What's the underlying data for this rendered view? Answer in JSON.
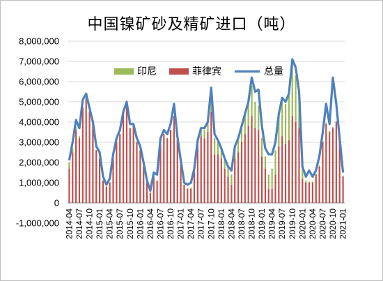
{
  "chart_data": {
    "type": "bar",
    "title": "中国镍矿砂及精矿进口（吨）",
    "stacked": true,
    "y_ticks": [
      "-1,000,000",
      "0",
      "1,000,000",
      "2,000,000",
      "3,000,000",
      "4,000,000",
      "5,000,000",
      "6,000,000",
      "7,000,000",
      "8,000,000"
    ],
    "ylim": [
      -1000000,
      8000000
    ],
    "x_tick_labels": [
      "2014-04",
      "2014-07",
      "2014-10",
      "2015-01",
      "2015-04",
      "2015-07",
      "2015-10",
      "2016-01",
      "2016-04",
      "2016-07",
      "2016-10",
      "2017-01",
      "2017-04",
      "2017-07",
      "2017-10",
      "2018-01",
      "2018-04",
      "2018-07",
      "2018-10",
      "2019-01",
      "2019-04",
      "2019-07",
      "2019-10",
      "2020-01",
      "2020-04",
      "2020-07",
      "2020-10",
      "2021-01"
    ],
    "categories": [
      "2014-04",
      "2014-05",
      "2014-06",
      "2014-07",
      "2014-08",
      "2014-09",
      "2014-10",
      "2014-11",
      "2014-12",
      "2015-01",
      "2015-02",
      "2015-03",
      "2015-04",
      "2015-05",
      "2015-06",
      "2015-07",
      "2015-08",
      "2015-09",
      "2015-10",
      "2015-11",
      "2015-12",
      "2016-01",
      "2016-02",
      "2016-03",
      "2016-04",
      "2016-05",
      "2016-06",
      "2016-07",
      "2016-08",
      "2016-09",
      "2016-10",
      "2016-11",
      "2016-12",
      "2017-01",
      "2017-02",
      "2017-03",
      "2017-04",
      "2017-05",
      "2017-06",
      "2017-07",
      "2017-08",
      "2017-09",
      "2017-10",
      "2017-11",
      "2017-12",
      "2018-01",
      "2018-02",
      "2018-03",
      "2018-04",
      "2018-05",
      "2018-06",
      "2018-07",
      "2018-08",
      "2018-09",
      "2018-10",
      "2018-11",
      "2018-12",
      "2019-01",
      "2019-02",
      "2019-03",
      "2019-04",
      "2019-05",
      "2019-06",
      "2019-07",
      "2019-08",
      "2019-09",
      "2019-10",
      "2019-11",
      "2019-12",
      "2020-01",
      "2020-02",
      "2020-03",
      "2020-04",
      "2020-05",
      "2020-06",
      "2020-07",
      "2020-08",
      "2020-09",
      "2020-10",
      "2020-11",
      "2020-12",
      "2021-01"
    ],
    "series": [
      {
        "name": "印尼",
        "kind": "bar",
        "color": "#9bbb59",
        "values": [
          300000,
          200000,
          150000,
          100000,
          50000,
          50000,
          30000,
          30000,
          30000,
          20000,
          20000,
          20000,
          20000,
          10000,
          10000,
          10000,
          10000,
          10000,
          10000,
          10000,
          10000,
          10000,
          10000,
          10000,
          10000,
          10000,
          10000,
          10000,
          10000,
          10000,
          10000,
          10000,
          10000,
          10000,
          10000,
          20000,
          50000,
          100000,
          200000,
          300000,
          400000,
          500000,
          700000,
          800000,
          600000,
          400000,
          400000,
          500000,
          500000,
          500000,
          700000,
          800000,
          1000000,
          1400000,
          1500000,
          1300000,
          1200000,
          900000,
          600000,
          700000,
          1000000,
          1200000,
          1600000,
          1700000,
          2000000,
          2200000,
          2600000,
          2300000,
          1600000,
          600000,
          100000,
          50000,
          50000,
          50000,
          50000,
          50000,
          50000,
          50000,
          50000,
          50000,
          50000,
          50000
        ]
      },
      {
        "name": "菲律宾",
        "kind": "bar",
        "color": "#c0504d",
        "values": [
          1700000,
          2500000,
          3600000,
          3200000,
          4700000,
          5200000,
          4500000,
          3900000,
          2600000,
          2200000,
          1100000,
          800000,
          1000000,
          2200000,
          3000000,
          3400000,
          4400000,
          4800000,
          3700000,
          3800000,
          3000000,
          2600000,
          1800000,
          1000000,
          500000,
          1300000,
          1100000,
          2900000,
          3400000,
          3200000,
          3600000,
          4300000,
          3100000,
          1900000,
          900000,
          700000,
          700000,
          1500000,
          2800000,
          3300000,
          3200000,
          3500000,
          4500000,
          2400000,
          2400000,
          2200000,
          1700000,
          1300000,
          900000,
          2200000,
          2500000,
          3000000,
          3400000,
          3800000,
          4300000,
          3700000,
          3600000,
          2300000,
          1700000,
          700000,
          700000,
          1400000,
          2800000,
          3300000,
          2900000,
          3100000,
          4300000,
          4000000,
          3700000,
          1200000,
          1000000,
          1000000,
          1000000,
          1400000,
          1800000,
          3000000,
          3900000,
          3500000,
          3700000,
          4000000,
          3000000,
          1300000
        ]
      },
      {
        "name": "总量",
        "kind": "line",
        "color": "#4f81bd",
        "values": [
          2100000,
          3000000,
          4100000,
          3700000,
          5100000,
          5400000,
          4700000,
          4000000,
          2800000,
          2500000,
          1300000,
          900000,
          1200000,
          2400000,
          3200000,
          3600000,
          4500000,
          5000000,
          3900000,
          3900000,
          3200000,
          2800000,
          2000000,
          1100000,
          600000,
          1500000,
          1400000,
          3200000,
          3600000,
          3400000,
          3900000,
          4900000,
          3300000,
          2100000,
          1000000,
          900000,
          1000000,
          1700000,
          3100000,
          3700000,
          3700000,
          4000000,
          5700000,
          3400000,
          3100000,
          2700000,
          2200000,
          1800000,
          1600000,
          2800000,
          3200000,
          3800000,
          4400000,
          5000000,
          6200000,
          5500000,
          5600000,
          3800000,
          2700000,
          2400000,
          2400000,
          3000000,
          4400000,
          5200000,
          5000000,
          5400000,
          7100000,
          6700000,
          5500000,
          1800000,
          1300000,
          1600000,
          1300000,
          1600000,
          2300000,
          3500000,
          4900000,
          3900000,
          6200000,
          4900000,
          3200000,
          1500000
        ]
      }
    ]
  }
}
